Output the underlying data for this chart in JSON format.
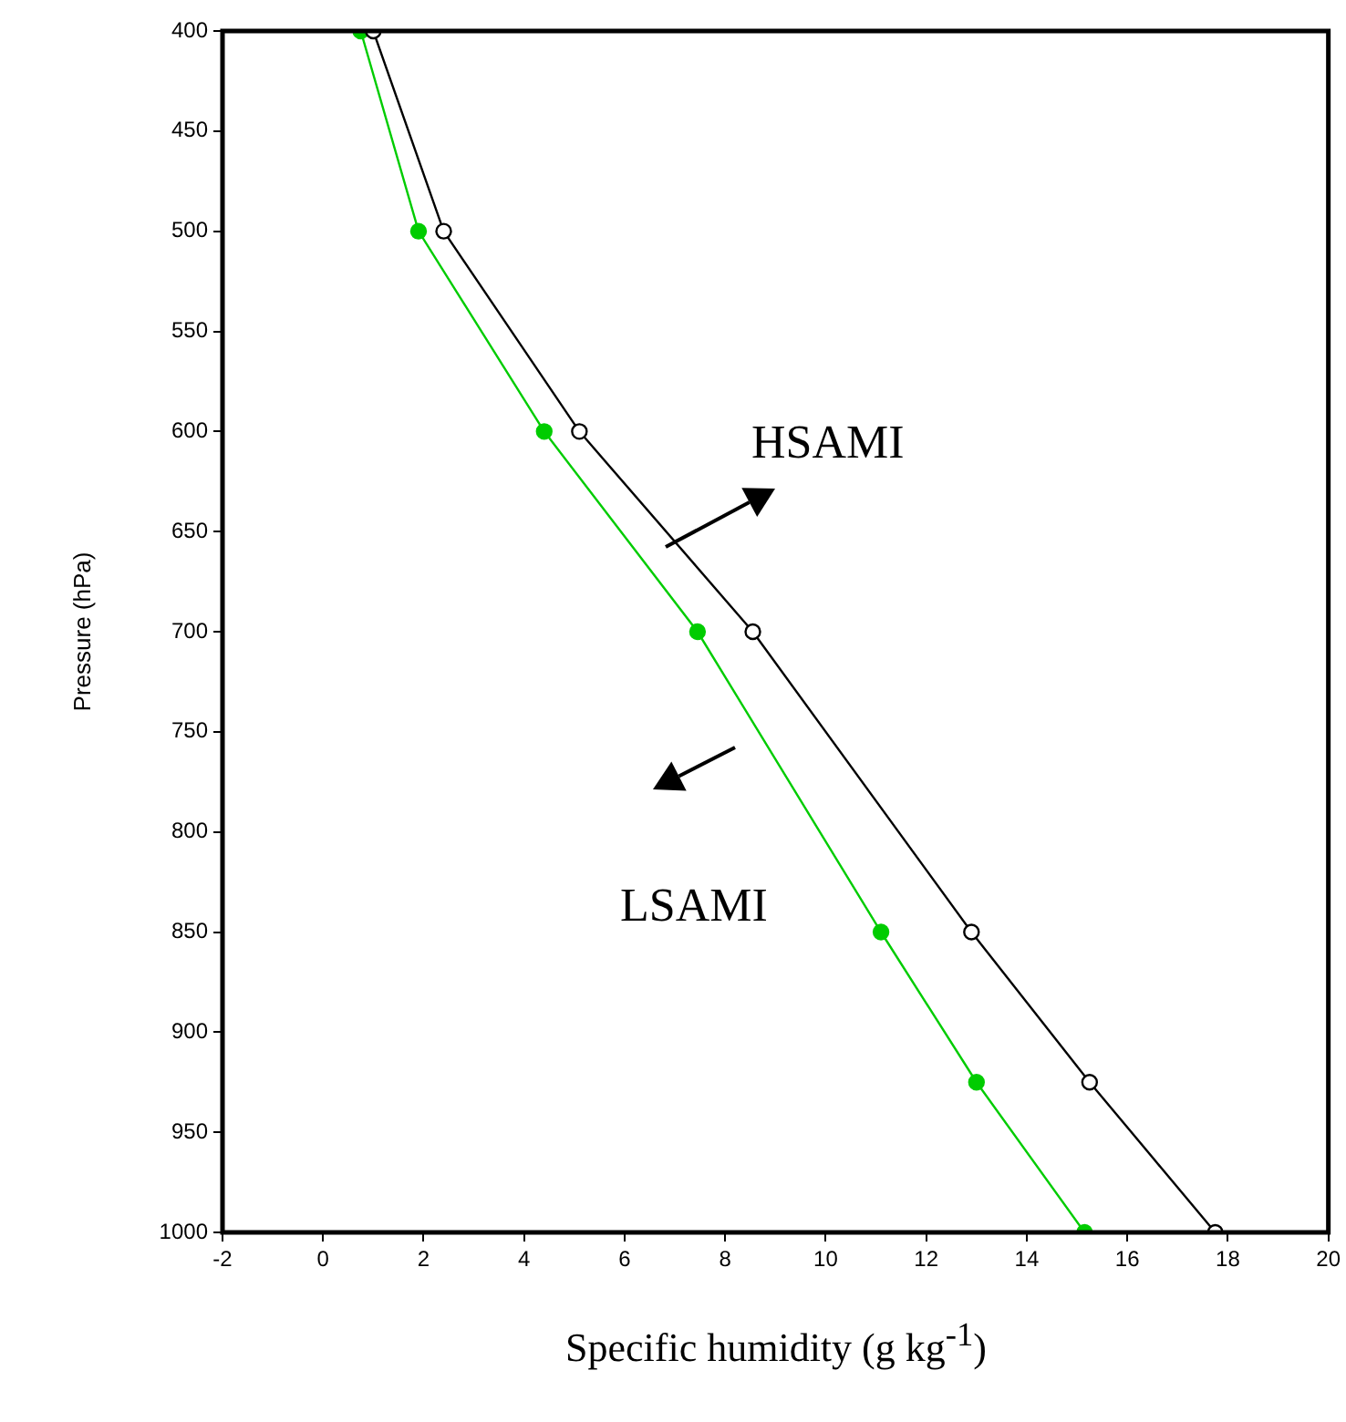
{
  "chart_data": {
    "type": "line",
    "xlabel": "Specific humidity (g kg$^{-1}$)",
    "ylabel": "Pressure (hPa)",
    "series": [
      {
        "name": "HSAMI",
        "color": "#000000",
        "x": [
          1.0,
          2.4,
          5.1,
          8.55,
          12.9,
          15.25,
          17.75
        ],
        "values": [
          400,
          500,
          600,
          700,
          850,
          925,
          1000
        ]
      },
      {
        "name": "LSAMI",
        "color": "#00cc00",
        "x": [
          0.75,
          1.9,
          4.4,
          7.45,
          11.1,
          13.0,
          15.15
        ],
        "values": [
          400,
          500,
          600,
          700,
          850,
          925,
          1000
        ]
      }
    ],
    "xlim": [
      -2,
      20
    ],
    "xticks": [
      -2,
      0,
      2,
      4,
      6,
      8,
      10,
      12,
      14,
      16,
      18,
      20
    ],
    "ylim": [
      1000,
      400
    ],
    "yticks": [
      400,
      450,
      500,
      550,
      600,
      650,
      700,
      750,
      800,
      850,
      900,
      950,
      1000
    ],
    "marker": "circle",
    "line_style": "solid",
    "legend": false,
    "grid": false
  }
}
